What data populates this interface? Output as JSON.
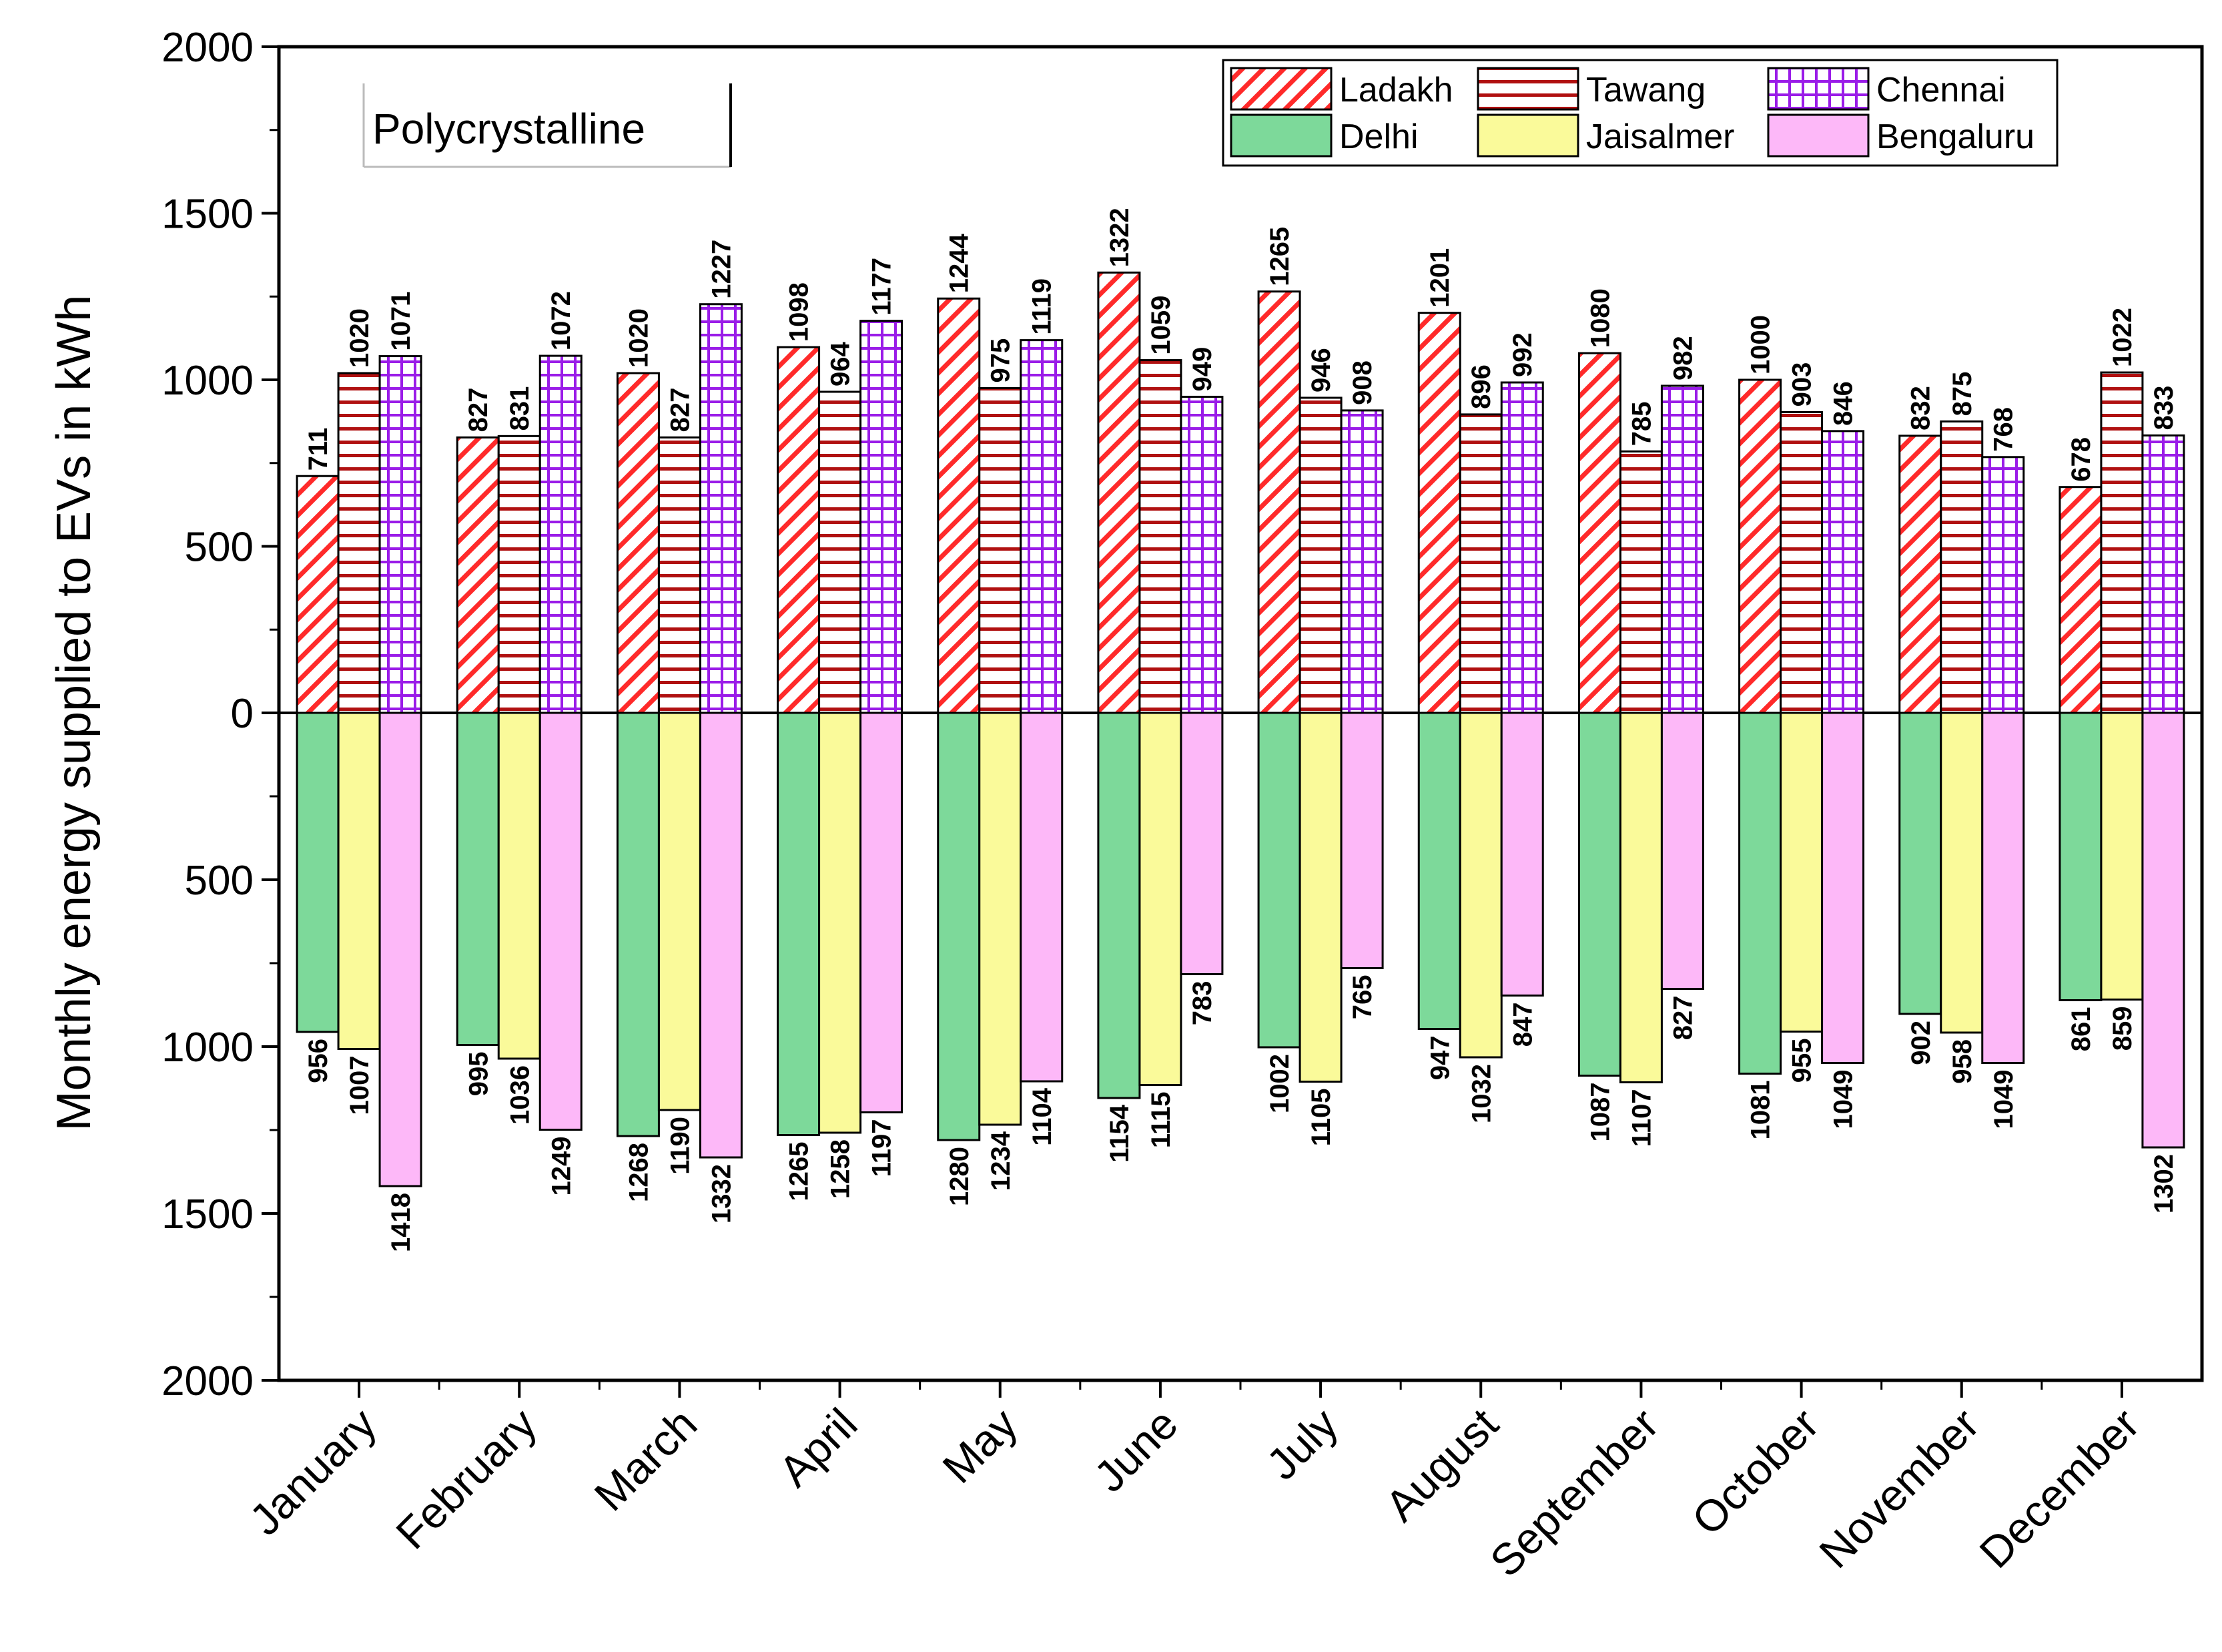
{
  "chart_data": {
    "type": "bar",
    "title": "",
    "inset_label": "Polycrystalline",
    "ylabel": "Monthly energy supplied to EVs in kWh",
    "xlabel": "",
    "ylim_top": [
      0,
      2000
    ],
    "ylim_bottom": [
      0,
      2000
    ],
    "yticks": [
      2000,
      1500,
      1000,
      500,
      0,
      500,
      1000,
      1500,
      2000
    ],
    "categories": [
      "January",
      "February",
      "March",
      "April",
      "May",
      "June",
      "July",
      "August",
      "September",
      "October",
      "November",
      "December"
    ],
    "series_up": [
      {
        "name": "Ladakh",
        "values": [
          711,
          827,
          1020,
          1098,
          1244,
          1322,
          1265,
          1201,
          1080,
          1000,
          832,
          678
        ]
      },
      {
        "name": "Tawang",
        "values": [
          1020,
          831,
          827,
          964,
          975,
          1059,
          946,
          896,
          785,
          903,
          875,
          1022
        ]
      },
      {
        "name": "Chennai",
        "values": [
          1071,
          1072,
          1227,
          1177,
          1119,
          949,
          908,
          992,
          982,
          846,
          768,
          833
        ]
      }
    ],
    "series_down": [
      {
        "name": "Delhi",
        "values": [
          956,
          995,
          1268,
          1265,
          1280,
          1154,
          1002,
          947,
          1087,
          1081,
          902,
          861
        ]
      },
      {
        "name": "Jaisalmer",
        "values": [
          1007,
          1036,
          1190,
          1258,
          1234,
          1115,
          1105,
          1032,
          1107,
          955,
          958,
          859
        ]
      },
      {
        "name": "Bengaluru",
        "values": [
          1418,
          1249,
          1332,
          1197,
          1104,
          783,
          765,
          847,
          827,
          1049,
          1049,
          1302
        ]
      }
    ],
    "legend": [
      "Ladakh",
      "Tawang",
      "Chennai",
      "Delhi",
      "Jaisalmer",
      "Bengaluru"
    ],
    "legend_position": "top-right",
    "colors": {
      "Ladakh": "#ff2a2a",
      "Tawang": "#b01010",
      "Chennai": "#9a1ce8",
      "Delhi": "#7dd99a",
      "Jaisalmer": "#fafa9a",
      "Bengaluru": "#fdb8f8"
    }
  }
}
